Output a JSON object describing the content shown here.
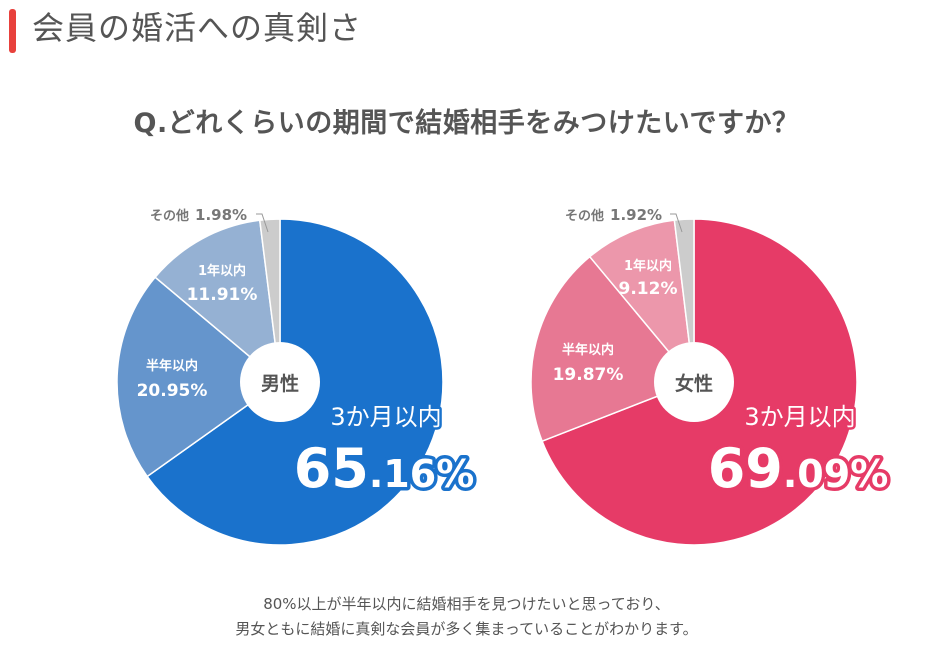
{
  "section": {
    "title": "会員の婚活への真剣さ",
    "accent_color": "#e8413c"
  },
  "question": "Q.どれくらいの期間で結婚相手をみつけたいですか？",
  "caption": {
    "line1": "80%以上が半年以内に結婚相手を見つけたいと思っており、",
    "line2": "男女ともに結婚に真剣な会員が多く集まっていることがわかります。"
  },
  "chart_data": [
    {
      "type": "pie",
      "center_label": "男性",
      "slices": [
        {
          "label": "3か月以内",
          "value": 65.16,
          "value_int": "65",
          "value_dec": ".16%",
          "color": "#1a72cc"
        },
        {
          "label": "半年以内",
          "value": 20.95,
          "value_text": "20.95%",
          "color": "#6595cc"
        },
        {
          "label": "1年以内",
          "value": 11.91,
          "value_text": "11.91%",
          "color": "#95b1d3"
        },
        {
          "label": "その他",
          "value": 1.98,
          "value_text": "1.98%",
          "color": "#cccccc"
        }
      ]
    },
    {
      "type": "pie",
      "center_label": "女性",
      "slices": [
        {
          "label": "3か月以内",
          "value": 69.09,
          "value_int": "69",
          "value_dec": ".09%",
          "color": "#e63b67"
        },
        {
          "label": "半年以内",
          "value": 19.87,
          "value_text": "19.87%",
          "color": "#e77893"
        },
        {
          "label": "1年以内",
          "value": 9.12,
          "value_text": "9.12%",
          "color": "#ec97ab"
        },
        {
          "label": "その他",
          "value": 1.92,
          "value_text": "1.92%",
          "color": "#cccccc"
        }
      ]
    }
  ]
}
